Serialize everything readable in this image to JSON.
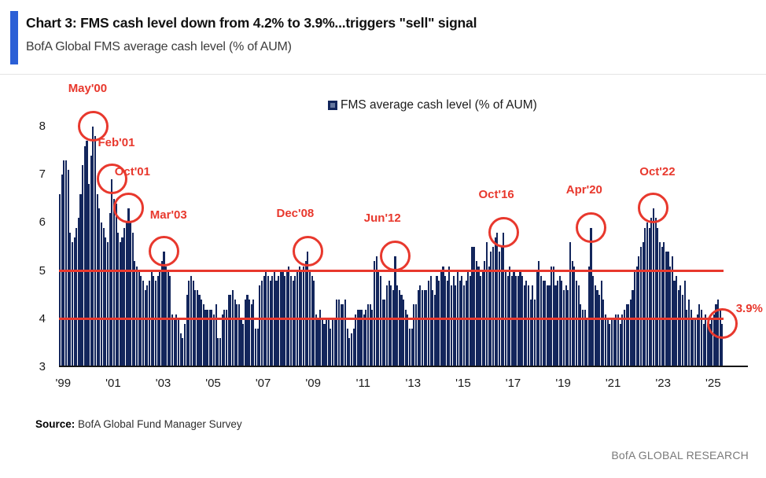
{
  "header": {
    "title": "Chart 3: FMS cash level down from 4.2% to 3.9%...triggers \"sell\" signal",
    "subtitle": "BofA Global FMS average cash level (% of AUM)"
  },
  "legend": {
    "label": "FMS average cash level (% of AUM)"
  },
  "chart_data": {
    "type": "bar",
    "title": "FMS average cash level (% of AUM)",
    "frequency": "monthly",
    "x_start": "1999-01",
    "x_end": "2025-07",
    "ylim": [
      3,
      8.2
    ],
    "y_ticks": [
      8,
      7,
      6,
      5,
      4,
      3
    ],
    "x_tick_labels": [
      "'99",
      "'01",
      "'03",
      "'05",
      "'07",
      "'09",
      "'11",
      "'13",
      "'15",
      "'17",
      "'19",
      "'21",
      "'23",
      "'25"
    ],
    "grid": false,
    "legend_position": "top-center",
    "reference_lines": [
      {
        "value": 5.0
      },
      {
        "value": 4.0
      }
    ],
    "colors": {
      "bar": "#13265C",
      "reference_line": "#E8382D",
      "annotation": "#E8382D",
      "accent": "#2B5FD6"
    },
    "values_by_year": {
      "1999": [
        6.6,
        7.0,
        7.3,
        7.3,
        7.1,
        5.8,
        5.6,
        5.7,
        5.9,
        6.1,
        6.6,
        7.2
      ],
      "2000": [
        7.6,
        7.7,
        6.8,
        7.4,
        8.0,
        7.8,
        6.6,
        6.3,
        6.0,
        5.9,
        5.7,
        5.6
      ],
      "2001": [
        6.2,
        6.9,
        6.5,
        6.4,
        5.8,
        5.6,
        5.7,
        5.9,
        6.0,
        6.3,
        6.0,
        5.8
      ],
      "2002": [
        5.2,
        5.1,
        5.0,
        4.9,
        4.8,
        4.6,
        4.7,
        4.8,
        5.0,
        4.9,
        4.8,
        4.9
      ],
      "2003": [
        5.0,
        5.2,
        5.4,
        5.1,
        5.0,
        4.9,
        4.1,
        4.0,
        4.1,
        4.0,
        3.7,
        3.6
      ],
      "2004": [
        3.9,
        4.5,
        4.8,
        4.9,
        4.8,
        4.6,
        4.6,
        4.5,
        4.4,
        4.3,
        4.2,
        4.2
      ],
      "2005": [
        4.2,
        4.2,
        4.1,
        4.3,
        3.6,
        3.6,
        4.1,
        4.2,
        4.2,
        4.5,
        4.5,
        4.6
      ],
      "2006": [
        4.4,
        4.3,
        4.3,
        4.0,
        3.9,
        4.4,
        4.5,
        4.4,
        4.3,
        4.4,
        3.8,
        3.8
      ],
      "2007": [
        4.7,
        4.8,
        4.9,
        5.0,
        4.9,
        4.8,
        4.9,
        5.0,
        4.8,
        4.9,
        5.0,
        5.0
      ],
      "2008": [
        4.9,
        5.0,
        5.1,
        4.9,
        4.8,
        4.9,
        5.0,
        5.1,
        5.0,
        5.1,
        5.2,
        5.4
      ],
      "2009": [
        5.0,
        4.9,
        4.8,
        4.1,
        4.0,
        4.2,
        4.0,
        3.9,
        4.0,
        4.0,
        3.8,
        4.0
      ],
      "2010": [
        4.0,
        4.4,
        4.4,
        4.3,
        4.3,
        4.4,
        3.8,
        3.6,
        3.7,
        3.8,
        4.1,
        4.2
      ],
      "2011": [
        4.2,
        4.2,
        4.1,
        4.2,
        4.3,
        4.3,
        4.2,
        5.2,
        5.3,
        5.0,
        4.9,
        4.4
      ],
      "2012": [
        4.4,
        4.7,
        4.8,
        4.7,
        4.6,
        5.3,
        4.7,
        4.6,
        4.5,
        4.4,
        4.2,
        4.1
      ],
      "2013": [
        3.8,
        3.8,
        4.3,
        4.3,
        4.6,
        4.7,
        4.6,
        4.6,
        4.6,
        4.8,
        4.9,
        4.6
      ],
      "2014": [
        4.5,
        4.9,
        4.8,
        5.0,
        5.1,
        4.9,
        4.8,
        5.1,
        4.7,
        4.9,
        4.7,
        5.0
      ],
      "2015": [
        4.8,
        4.9,
        4.7,
        4.8,
        5.0,
        4.9,
        5.5,
        5.5,
        5.2,
        5.1,
        4.9,
        5.0
      ],
      "2016": [
        5.2,
        5.6,
        5.1,
        5.4,
        5.5,
        5.7,
        5.8,
        5.4,
        5.5,
        5.8,
        5.0,
        4.9
      ],
      "2017": [
        5.1,
        4.9,
        5.0,
        4.9,
        4.9,
        5.0,
        4.9,
        4.7,
        4.8,
        4.7,
        4.4,
        4.7
      ],
      "2018": [
        4.4,
        5.0,
        5.2,
        4.9,
        4.8,
        4.8,
        4.7,
        4.7,
        5.1,
        5.1,
        4.7,
        4.8
      ],
      "2019": [
        4.9,
        4.8,
        4.6,
        4.7,
        4.6,
        5.6,
        5.2,
        5.1,
        4.8,
        4.7,
        4.3,
        4.2
      ],
      "2020": [
        4.2,
        4.0,
        5.1,
        5.9,
        4.9,
        4.7,
        4.6,
        4.5,
        4.8,
        4.4,
        4.1,
        4.0
      ],
      "2021": [
        3.9,
        4.0,
        4.0,
        4.1,
        4.1,
        3.9,
        4.1,
        4.2,
        4.3,
        4.3,
        4.4,
        4.6
      ],
      "2022": [
        5.0,
        5.1,
        5.3,
        5.5,
        5.6,
        5.9,
        6.0,
        5.9,
        6.1,
        6.3,
        6.1,
        5.9
      ],
      "2023": [
        5.6,
        5.5,
        5.6,
        5.4,
        5.4,
        5.1,
        5.3,
        4.8,
        4.9,
        4.6,
        4.7,
        4.5
      ],
      "2024": [
        4.8,
        4.2,
        4.4,
        4.2,
        4.0,
        4.0,
        4.1,
        4.3,
        4.2,
        3.9,
        4.1,
        3.9
      ],
      "2025": [
        3.9,
        4.0,
        4.1,
        4.3,
        4.4,
        4.2,
        3.9
      ]
    },
    "annotations": [
      {
        "label": "May'00",
        "month": "2000-05",
        "value": 8.0,
        "anchor": "above"
      },
      {
        "label": "Feb'01",
        "month": "2001-02",
        "value": 6.9,
        "anchor": "above-right"
      },
      {
        "label": "Oct'01",
        "month": "2001-10",
        "value": 6.3,
        "anchor": "above-right"
      },
      {
        "label": "Mar'03",
        "month": "2003-03",
        "value": 5.4,
        "anchor": "above-right"
      },
      {
        "label": "Dec'08",
        "month": "2008-12",
        "value": 5.4,
        "anchor": "above-left"
      },
      {
        "label": "Jun'12",
        "month": "2012-06",
        "value": 5.3,
        "anchor": "above-left"
      },
      {
        "label": "Oct'16",
        "month": "2016-10",
        "value": 5.8,
        "anchor": "above"
      },
      {
        "label": "Apr'20",
        "month": "2020-04",
        "value": 5.9,
        "anchor": "above"
      },
      {
        "label": "Oct'22",
        "month": "2022-10",
        "value": 6.3,
        "anchor": "above-right"
      },
      {
        "label": "3.9%",
        "month": "2025-07",
        "value": 3.9,
        "anchor": "right"
      }
    ]
  },
  "source": {
    "label": "Source:",
    "text": " BofA Global Fund Manager Survey"
  },
  "footer": {
    "brand": "BofA GLOBAL RESEARCH"
  }
}
